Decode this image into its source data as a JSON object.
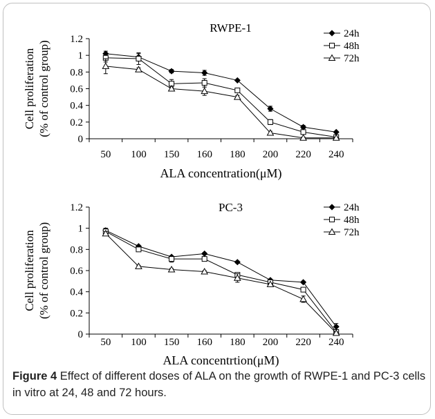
{
  "caption": {
    "label": "Figure 4",
    "text": "Effect of different doses of ALA on the growth of RWPE-1 and PC-3 cells in vitro at 24, 48 and 72 hours."
  },
  "chart_data": [
    {
      "type": "line",
      "title": "RWPE-1",
      "xlabel": "ALA concentration(μM)",
      "ylabel": "Cell proliferation (% of control group)",
      "ylim": [
        0,
        1.2
      ],
      "yticks": [
        "0",
        "0.2",
        "0.4",
        "0.6",
        "0.8",
        "1",
        "1.2"
      ],
      "categories": [
        "50",
        "100",
        "150",
        "160",
        "180",
        "200",
        "220",
        "240"
      ],
      "legend_position": "top-right",
      "series": [
        {
          "name": "24h",
          "marker": "diamond",
          "values": [
            1.02,
            0.98,
            0.81,
            0.79,
            0.7,
            0.36,
            0.14,
            0.08
          ],
          "errors": [
            0.03,
            0.04,
            0.02,
            0.03,
            0.01,
            0.03,
            0.02,
            0.01
          ]
        },
        {
          "name": "48h",
          "marker": "square",
          "values": [
            0.97,
            0.96,
            0.66,
            0.67,
            0.58,
            0.2,
            0.08,
            0.02
          ],
          "errors": [
            0.05,
            0.07,
            0.05,
            0.05,
            0.02,
            0.03,
            0.02,
            0.01
          ]
        },
        {
          "name": "72h",
          "marker": "triangle",
          "values": [
            0.87,
            0.83,
            0.6,
            0.57,
            0.5,
            0.07,
            0.01,
            0.01
          ],
          "errors": [
            0.09,
            0.02,
            0.02,
            0.05,
            0.02,
            0.02,
            0.01,
            0.01
          ]
        }
      ]
    },
    {
      "type": "line",
      "title": "PC-3",
      "xlabel": "ALA concentrtion(μM)",
      "ylabel": "Cell proliferation (% of control group)",
      "ylim": [
        0,
        1.2
      ],
      "yticks": [
        "0",
        "0.2",
        "0.4",
        "0.6",
        "0.8",
        "1",
        "1.2"
      ],
      "categories": [
        "50",
        "100",
        "150",
        "160",
        "180",
        "200",
        "220",
        "240"
      ],
      "legend_position": "top-right",
      "series": [
        {
          "name": "24h",
          "marker": "diamond",
          "values": [
            0.98,
            0.83,
            0.73,
            0.76,
            0.68,
            0.51,
            0.49,
            0.07
          ],
          "errors": [
            0.02,
            0.01,
            0.01,
            0.01,
            0.01,
            0.01,
            0.01,
            0.03
          ]
        },
        {
          "name": "48h",
          "marker": "square",
          "values": [
            0.97,
            0.8,
            0.71,
            0.71,
            0.56,
            0.49,
            0.42,
            0.02
          ],
          "errors": [
            0.03,
            0.02,
            0.03,
            0.01,
            0.02,
            0.01,
            0.02,
            0.02
          ]
        },
        {
          "name": "72h",
          "marker": "triangle",
          "values": [
            0.95,
            0.64,
            0.61,
            0.59,
            0.53,
            0.47,
            0.33,
            0.01
          ],
          "errors": [
            0.02,
            0.01,
            0.01,
            0.01,
            0.04,
            0.01,
            0.03,
            0.01
          ]
        }
      ]
    }
  ]
}
